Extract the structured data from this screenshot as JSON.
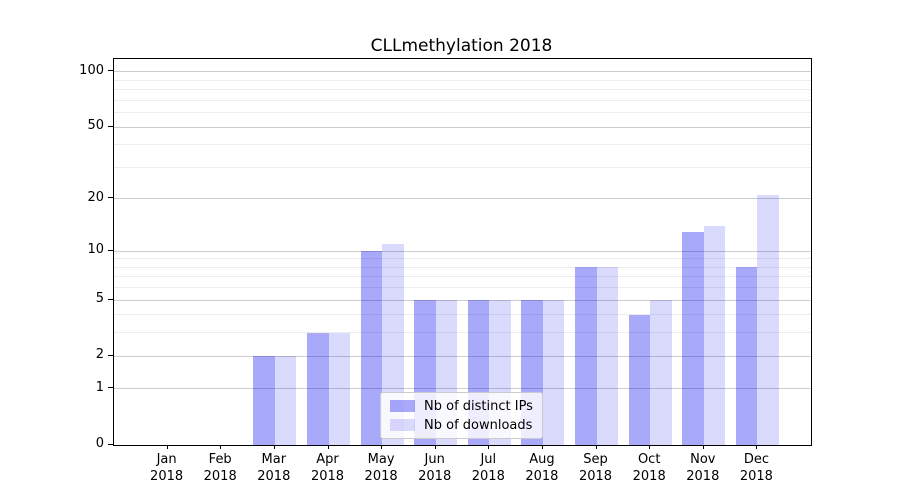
{
  "chart_data": {
    "type": "bar",
    "title": "CLLmethylation 2018",
    "xlabel": "",
    "ylabel": "",
    "categories": [
      "Jan",
      "Feb",
      "Mar",
      "Apr",
      "May",
      "Jun",
      "Jul",
      "Aug",
      "Sep",
      "Oct",
      "Nov",
      "Dec"
    ],
    "x_year": "2018",
    "series": [
      {
        "name": "Nb of distinct IPs",
        "color": "rgba(10,10,240,0.35)",
        "color_hex_on_white": "#a9a9fa",
        "values": [
          0,
          0,
          2,
          3,
          10,
          5,
          5,
          5,
          8,
          4,
          13,
          8
        ]
      },
      {
        "name": "Nb of downloads",
        "color": "rgba(10,10,240,0.15)",
        "color_hex_on_white": "#d9d9fc",
        "values": [
          0,
          0,
          2,
          3,
          11,
          5,
          5,
          5,
          8,
          5,
          14,
          21
        ]
      }
    ],
    "yscale": "log1p",
    "yticks": [
      0,
      1,
      2,
      5,
      10,
      20,
      50,
      100
    ],
    "yticks_minor": [
      3,
      4,
      6,
      7,
      8,
      9,
      30,
      40,
      60,
      70,
      80,
      90
    ],
    "ylim": [
      0,
      118
    ],
    "grid": true,
    "legend_position": "lower center"
  }
}
